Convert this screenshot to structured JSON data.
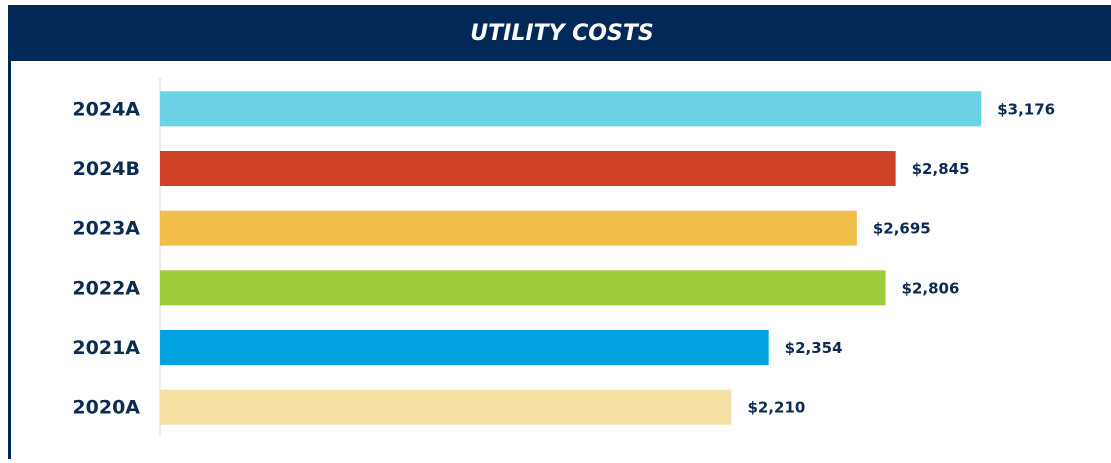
{
  "chart_data": {
    "type": "bar",
    "orientation": "horizontal",
    "title": "UTILITY COSTS",
    "categories": [
      "2024A",
      "2024B",
      "2023A",
      "2022A",
      "2021A",
      "2020A"
    ],
    "values": [
      3176,
      2845,
      2695,
      2806,
      2354,
      2210
    ],
    "value_labels": [
      "$3,176",
      "$2,845",
      "$2,695",
      "$2,806",
      "$2,354",
      "$2,210"
    ],
    "colors": [
      "#6bd1e3",
      "#d04225",
      "#f2be4a",
      "#9ccb3c",
      "#00a3e0",
      "#f5e1a4"
    ],
    "xlim": [
      0,
      3500
    ]
  }
}
